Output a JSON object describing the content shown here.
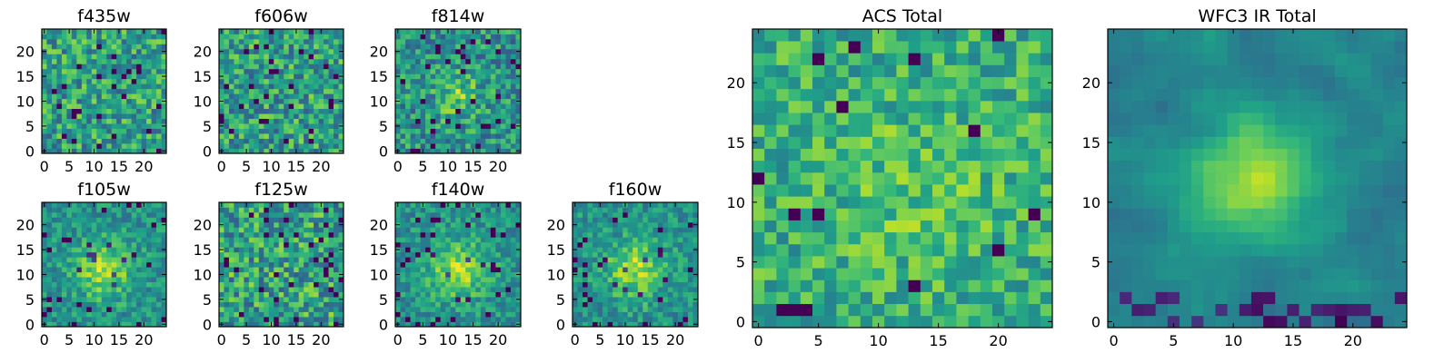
{
  "chart_data": {
    "type": "heatmap",
    "colormap": "viridis",
    "panels": [
      {
        "title": "f435w",
        "grid": [
          25,
          25
        ],
        "xlim": [
          -0.5,
          24.5
        ],
        "ylim": [
          -0.5,
          24.5
        ],
        "xticks": [
          0,
          5,
          10,
          15,
          20
        ],
        "yticks": [
          0,
          5,
          10,
          15,
          20
        ],
        "pattern": "noise",
        "seed": 11
      },
      {
        "title": "f606w",
        "grid": [
          25,
          25
        ],
        "xlim": [
          -0.5,
          24.5
        ],
        "ylim": [
          -0.5,
          24.5
        ],
        "xticks": [
          0,
          5,
          10,
          15,
          20
        ],
        "yticks": [
          0,
          5,
          10,
          15,
          20
        ],
        "pattern": "noise",
        "seed": 23
      },
      {
        "title": "f814w",
        "grid": [
          25,
          25
        ],
        "xlim": [
          -0.5,
          24.5
        ],
        "ylim": [
          -0.5,
          24.5
        ],
        "xticks": [
          0,
          5,
          10,
          15,
          20
        ],
        "yticks": [
          0,
          5,
          10,
          15,
          20
        ],
        "pattern": "faint-source",
        "seed": 37
      },
      {
        "title": "f105w",
        "grid": [
          25,
          25
        ],
        "xlim": [
          -0.5,
          24.5
        ],
        "ylim": [
          -0.5,
          24.5
        ],
        "xticks": [
          0,
          5,
          10,
          15,
          20
        ],
        "yticks": [
          0,
          5,
          10,
          15,
          20
        ],
        "pattern": "source",
        "seed": 41
      },
      {
        "title": "f125w",
        "grid": [
          25,
          25
        ],
        "xlim": [
          -0.5,
          24.5
        ],
        "ylim": [
          -0.5,
          24.5
        ],
        "xticks": [
          0,
          5,
          10,
          15,
          20
        ],
        "yticks": [
          0,
          5,
          10,
          15,
          20
        ],
        "pattern": "blotchy",
        "seed": 53
      },
      {
        "title": "f140w",
        "grid": [
          25,
          25
        ],
        "xlim": [
          -0.5,
          24.5
        ],
        "ylim": [
          -0.5,
          24.5
        ],
        "xticks": [
          0,
          5,
          10,
          15,
          20
        ],
        "yticks": [
          0,
          5,
          10,
          15,
          20
        ],
        "pattern": "source",
        "seed": 67
      },
      {
        "title": "f160w",
        "grid": [
          25,
          25
        ],
        "xlim": [
          -0.5,
          24.5
        ],
        "ylim": [
          -0.5,
          24.5
        ],
        "xticks": [
          0,
          5,
          10,
          15,
          20
        ],
        "yticks": [
          0,
          5,
          10,
          15,
          20
        ],
        "pattern": "source",
        "seed": 79
      },
      {
        "title": "ACS Total",
        "grid": [
          25,
          25
        ],
        "xlim": [
          -0.5,
          24.5
        ],
        "ylim": [
          -0.5,
          24.5
        ],
        "xticks": [
          0,
          5,
          10,
          15,
          20
        ],
        "yticks": [
          0,
          5,
          10,
          15,
          20
        ],
        "pattern": "noise-bright",
        "seed": 97
      },
      {
        "title": "WFC3 IR Total",
        "grid": [
          25,
          25
        ],
        "xlim": [
          -0.5,
          24.5
        ],
        "ylim": [
          -0.5,
          24.5
        ],
        "xticks": [
          0,
          5,
          10,
          15,
          20
        ],
        "yticks": [
          0,
          5,
          10,
          15,
          20
        ],
        "pattern": "smooth-source",
        "seed": 101
      }
    ]
  }
}
